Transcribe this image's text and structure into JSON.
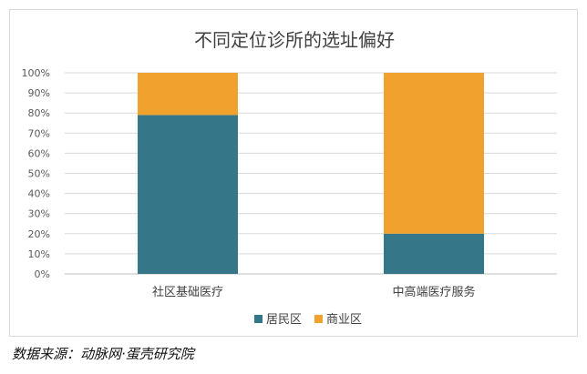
{
  "chart_data": {
    "type": "bar",
    "stacked": true,
    "title": "不同定位诊所的选址偏好",
    "categories": [
      "社区基础医疗",
      "中高端医疗服务"
    ],
    "series": [
      {
        "name": "居民区",
        "values": [
          79,
          20
        ],
        "color": "#357689"
      },
      {
        "name": "商业区",
        "values": [
          21,
          80
        ],
        "color": "#f0a12e"
      }
    ],
    "y_ticks": [
      "0%",
      "10%",
      "20%",
      "30%",
      "40%",
      "50%",
      "60%",
      "70%",
      "80%",
      "90%",
      "100%"
    ],
    "ylim": [
      0,
      100
    ],
    "grid": true,
    "legend_position": "bottom"
  },
  "source_note": "数据来源：动脉网·蛋壳研究院"
}
